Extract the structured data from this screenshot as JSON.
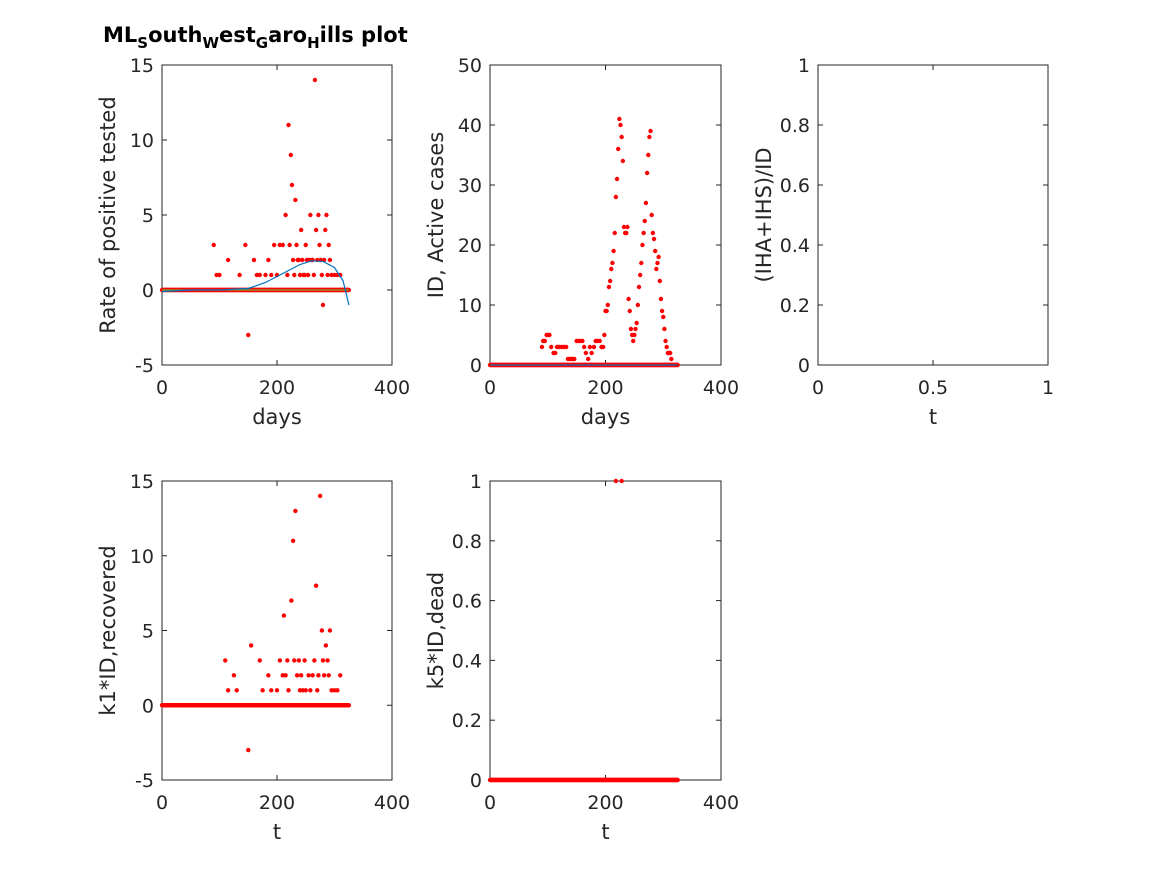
{
  "figure": {
    "title_parts": [
      {
        "text": "ML",
        "sub": false
      },
      {
        "text": "S",
        "sub": true
      },
      {
        "text": "outh",
        "sub": false
      },
      {
        "text": "W",
        "sub": true
      },
      {
        "text": "est",
        "sub": false
      },
      {
        "text": "G",
        "sub": true
      },
      {
        "text": "aro",
        "sub": false
      },
      {
        "text": "H",
        "sub": true
      },
      {
        "text": "ills plot",
        "sub": false
      }
    ]
  },
  "colors": {
    "points": "#ff0000",
    "fit": "#0072bd",
    "zero_line": "#77ac30",
    "axis": "#262626"
  },
  "chart_data": [
    {
      "id": "p1",
      "type": "scatter",
      "xlabel": "days",
      "ylabel": "Rate of positive tested",
      "xlim": [
        0,
        400
      ],
      "ylim": [
        -5,
        15
      ],
      "xticks": [
        0,
        200,
        400
      ],
      "yticks": [
        -5,
        0,
        5,
        10,
        15
      ],
      "xtick_labels": [
        "0",
        "200",
        "400"
      ],
      "ytick_labels": [
        "-5",
        "0",
        "5",
        "10",
        "15"
      ],
      "grid": false,
      "series": [
        {
          "kind": "points",
          "points": [
            [
              90,
              3
            ],
            [
              95,
              1
            ],
            [
              100,
              1
            ],
            [
              115,
              2
            ],
            [
              135,
              1
            ],
            [
              145,
              3
            ],
            [
              150,
              -3
            ],
            [
              160,
              2
            ],
            [
              165,
              1
            ],
            [
              170,
              1
            ],
            [
              180,
              1
            ],
            [
              185,
              2
            ],
            [
              190,
              1
            ],
            [
              195,
              3
            ],
            [
              200,
              1
            ],
            [
              205,
              3
            ],
            [
              210,
              3
            ],
            [
              215,
              5
            ],
            [
              218,
              1
            ],
            [
              220,
              11
            ],
            [
              222,
              3
            ],
            [
              224,
              9
            ],
            [
              226,
              7
            ],
            [
              228,
              2
            ],
            [
              230,
              1
            ],
            [
              232,
              6
            ],
            [
              234,
              3
            ],
            [
              236,
              2
            ],
            [
              238,
              2
            ],
            [
              240,
              1
            ],
            [
              242,
              4
            ],
            [
              244,
              2
            ],
            [
              246,
              1
            ],
            [
              248,
              1
            ],
            [
              250,
              3
            ],
            [
              252,
              2
            ],
            [
              254,
              1
            ],
            [
              256,
              2
            ],
            [
              258,
              5
            ],
            [
              260,
              2
            ],
            [
              262,
              2
            ],
            [
              264,
              1
            ],
            [
              266,
              14
            ],
            [
              268,
              4
            ],
            [
              270,
              2
            ],
            [
              272,
              5
            ],
            [
              274,
              3
            ],
            [
              276,
              2
            ],
            [
              278,
              1
            ],
            [
              280,
              -1
            ],
            [
              282,
              2
            ],
            [
              284,
              4
            ],
            [
              286,
              5
            ],
            [
              288,
              1
            ],
            [
              290,
              3
            ],
            [
              292,
              2
            ],
            [
              295,
              1
            ],
            [
              300,
              1
            ],
            [
              305,
              1
            ],
            [
              310,
              1
            ]
          ],
          "zero_range": [
            0,
            325
          ]
        },
        {
          "kind": "line",
          "color": "zero_line",
          "points": [
            [
              0,
              0
            ],
            [
              325,
              0
            ]
          ]
        },
        {
          "kind": "line",
          "color": "fit",
          "points": [
            [
              0,
              -0.1
            ],
            [
              50,
              0
            ],
            [
              100,
              0
            ],
            [
              150,
              0.1
            ],
            [
              180,
              0.5
            ],
            [
              210,
              1.1
            ],
            [
              240,
              1.7
            ],
            [
              260,
              1.95
            ],
            [
              280,
              1.9
            ],
            [
              300,
              1.5
            ],
            [
              315,
              0.6
            ],
            [
              325,
              -1.0
            ]
          ]
        }
      ]
    },
    {
      "id": "p2",
      "type": "scatter",
      "xlabel": "days",
      "ylabel": "ID, Active cases",
      "xlim": [
        0,
        400
      ],
      "ylim": [
        0,
        50
      ],
      "xticks": [
        0,
        200,
        400
      ],
      "yticks": [
        0,
        10,
        20,
        30,
        40,
        50
      ],
      "xtick_labels": [
        "0",
        "200",
        "400"
      ],
      "ytick_labels": [
        "0",
        "10",
        "20",
        "30",
        "40",
        "50"
      ],
      "grid": false,
      "series": [
        {
          "kind": "points",
          "points": [
            [
              90,
              3
            ],
            [
              92,
              4
            ],
            [
              95,
              4
            ],
            [
              98,
              5
            ],
            [
              100,
              5
            ],
            [
              103,
              5
            ],
            [
              106,
              3
            ],
            [
              110,
              2
            ],
            [
              113,
              2
            ],
            [
              116,
              3
            ],
            [
              120,
              3
            ],
            [
              124,
              3
            ],
            [
              128,
              3
            ],
            [
              132,
              3
            ],
            [
              135,
              1
            ],
            [
              138,
              1
            ],
            [
              140,
              1
            ],
            [
              143,
              1
            ],
            [
              146,
              1
            ],
            [
              150,
              4
            ],
            [
              153,
              4
            ],
            [
              156,
              4
            ],
            [
              160,
              4
            ],
            [
              163,
              3
            ],
            [
              166,
              2
            ],
            [
              170,
              1
            ],
            [
              173,
              3
            ],
            [
              176,
              2
            ],
            [
              180,
              3
            ],
            [
              183,
              4
            ],
            [
              186,
              4
            ],
            [
              190,
              4
            ],
            [
              193,
              3
            ],
            [
              196,
              3
            ],
            [
              198,
              5
            ],
            [
              200,
              9
            ],
            [
              202,
              9
            ],
            [
              204,
              10
            ],
            [
              206,
              13
            ],
            [
              208,
              14
            ],
            [
              210,
              16
            ],
            [
              212,
              17
            ],
            [
              214,
              19
            ],
            [
              216,
              22
            ],
            [
              218,
              28
            ],
            [
              220,
              31
            ],
            [
              222,
              36
            ],
            [
              224,
              41
            ],
            [
              226,
              40
            ],
            [
              228,
              38
            ],
            [
              230,
              34
            ],
            [
              232,
              23
            ],
            [
              234,
              22
            ],
            [
              236,
              22
            ],
            [
              238,
              23
            ],
            [
              240,
              11
            ],
            [
              242,
              9
            ],
            [
              244,
              6
            ],
            [
              246,
              5
            ],
            [
              248,
              4
            ],
            [
              250,
              5
            ],
            [
              252,
              6
            ],
            [
              254,
              7
            ],
            [
              256,
              10
            ],
            [
              258,
              13
            ],
            [
              260,
              15
            ],
            [
              262,
              17
            ],
            [
              264,
              20
            ],
            [
              266,
              22
            ],
            [
              268,
              24
            ],
            [
              270,
              27
            ],
            [
              272,
              32
            ],
            [
              274,
              35
            ],
            [
              276,
              38
            ],
            [
              278,
              39
            ],
            [
              280,
              25
            ],
            [
              282,
              22
            ],
            [
              284,
              21
            ],
            [
              286,
              19
            ],
            [
              288,
              16
            ],
            [
              290,
              17
            ],
            [
              292,
              18
            ],
            [
              294,
              14
            ],
            [
              296,
              11
            ],
            [
              298,
              9
            ],
            [
              300,
              8
            ],
            [
              302,
              6
            ],
            [
              304,
              4
            ],
            [
              306,
              3
            ],
            [
              308,
              2
            ],
            [
              310,
              2
            ],
            [
              312,
              2
            ],
            [
              314,
              1
            ]
          ],
          "zero_range": [
            0,
            325
          ]
        },
        {
          "kind": "line",
          "color": "fit",
          "points": [
            [
              0,
              0
            ],
            [
              325,
              0
            ]
          ]
        }
      ]
    },
    {
      "id": "p3",
      "type": "scatter",
      "xlabel": "t",
      "ylabel": "(IHA+IHS)/ID",
      "xlim": [
        0,
        1
      ],
      "ylim": [
        0,
        1
      ],
      "xticks": [
        0,
        0.5,
        1
      ],
      "yticks": [
        0,
        0.2,
        0.4,
        0.6,
        0.8,
        1
      ],
      "xtick_labels": [
        "0",
        "0.5",
        "1"
      ],
      "ytick_labels": [
        "0",
        "0.2",
        "0.4",
        "0.6",
        "0.8",
        "1"
      ],
      "grid": false,
      "series": []
    },
    {
      "id": "p4",
      "type": "scatter",
      "xlabel": "t",
      "ylabel": "k1*ID,recovered",
      "xlim": [
        0,
        400
      ],
      "ylim": [
        -5,
        15
      ],
      "xticks": [
        0,
        200,
        400
      ],
      "yticks": [
        -5,
        0,
        5,
        10,
        15
      ],
      "xtick_labels": [
        "0",
        "200",
        "400"
      ],
      "ytick_labels": [
        "-5",
        "0",
        "5",
        "10",
        "15"
      ],
      "grid": false,
      "series": [
        {
          "kind": "points",
          "points": [
            [
              110,
              3
            ],
            [
              115,
              1
            ],
            [
              125,
              2
            ],
            [
              130,
              1
            ],
            [
              150,
              -3
            ],
            [
              155,
              4
            ],
            [
              170,
              3
            ],
            [
              175,
              1
            ],
            [
              185,
              2
            ],
            [
              190,
              1
            ],
            [
              200,
              1
            ],
            [
              205,
              3
            ],
            [
              210,
              2
            ],
            [
              212,
              6
            ],
            [
              215,
              2
            ],
            [
              218,
              3
            ],
            [
              220,
              1
            ],
            [
              225,
              7
            ],
            [
              228,
              11
            ],
            [
              230,
              3
            ],
            [
              232,
              13
            ],
            [
              235,
              2
            ],
            [
              238,
              3
            ],
            [
              240,
              1
            ],
            [
              242,
              2
            ],
            [
              245,
              1
            ],
            [
              248,
              3
            ],
            [
              250,
              1
            ],
            [
              255,
              2
            ],
            [
              258,
              1
            ],
            [
              262,
              2
            ],
            [
              265,
              3
            ],
            [
              268,
              8
            ],
            [
              270,
              1
            ],
            [
              272,
              2
            ],
            [
              275,
              14
            ],
            [
              278,
              5
            ],
            [
              280,
              3
            ],
            [
              282,
              2
            ],
            [
              285,
              4
            ],
            [
              288,
              3
            ],
            [
              290,
              2
            ],
            [
              292,
              5
            ],
            [
              295,
              1
            ],
            [
              300,
              1
            ],
            [
              305,
              1
            ],
            [
              310,
              2
            ]
          ],
          "zero_range": [
            0,
            325
          ]
        }
      ]
    },
    {
      "id": "p5",
      "type": "scatter",
      "xlabel": "t",
      "ylabel": "k5*ID,dead",
      "xlim": [
        0,
        400
      ],
      "ylim": [
        0,
        1
      ],
      "xticks": [
        0,
        200,
        400
      ],
      "yticks": [
        0,
        0.2,
        0.4,
        0.6,
        0.8,
        1
      ],
      "xtick_labels": [
        "0",
        "200",
        "400"
      ],
      "ytick_labels": [
        "0",
        "0.2",
        "0.4",
        "0.6",
        "0.8",
        "1"
      ],
      "grid": false,
      "series": [
        {
          "kind": "points",
          "points": [
            [
              218,
              1
            ],
            [
              228,
              1
            ]
          ],
          "zero_range": [
            0,
            325
          ]
        }
      ]
    }
  ]
}
